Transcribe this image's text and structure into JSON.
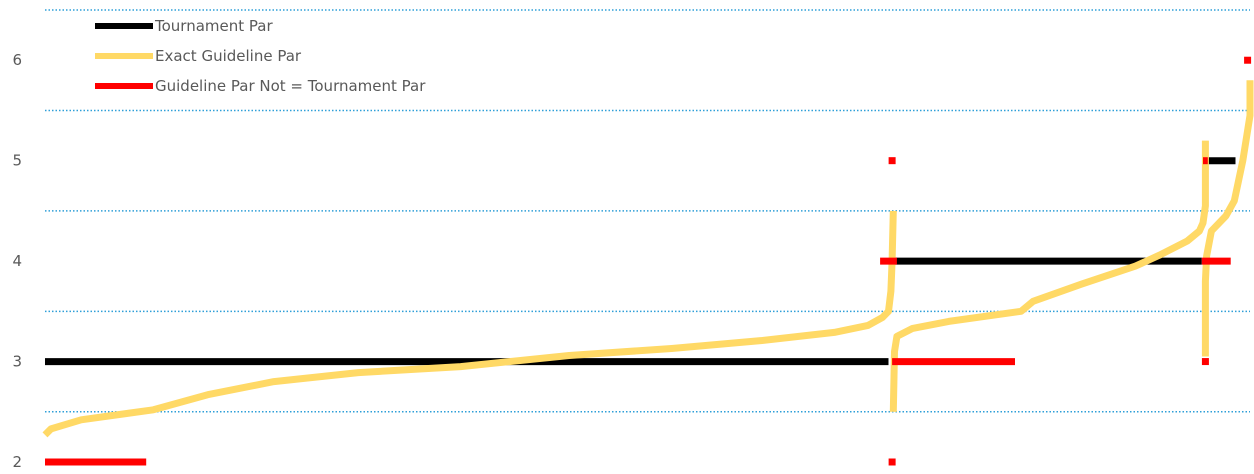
{
  "chart_data": {
    "type": "line",
    "title": "",
    "xlabel": "",
    "ylabel": "",
    "ylim": [
      2,
      6.5
    ],
    "xlim": [
      0,
      1000
    ],
    "yticks": [
      2,
      3,
      4,
      5,
      6
    ],
    "ytick_labels": [
      "2",
      "3",
      "4",
      "5",
      "6"
    ],
    "grid": {
      "y": true,
      "style": "dotted",
      "values": [
        2.5,
        3.5,
        4.5,
        5.5,
        6.5
      ]
    },
    "legend": {
      "placement": "top-left",
      "entries": [
        {
          "label": "Tournament Par",
          "color": "#000000"
        },
        {
          "label": "Exact Guideline Par",
          "color": "#FFD966"
        },
        {
          "label": "Guideline Par Not = Tournament Par",
          "color": "#FF0000"
        }
      ]
    },
    "series": [
      {
        "name": "Tournament Par",
        "color": "#000000",
        "segments": [
          [
            [
              0,
              3
            ],
            [
              700,
              3
            ]
          ],
          [
            [
              704,
              4
            ],
            [
              960,
              4
            ]
          ],
          [
            [
              962,
              5
            ],
            [
              988,
              5
            ]
          ]
        ]
      },
      {
        "name": "Exact Guideline Par",
        "color": "#FFD966",
        "segments": [
          [
            [
              0,
              2.27
            ],
            [
              5,
              2.33
            ],
            [
              30,
              2.42
            ],
            [
              90,
              2.52
            ],
            [
              135,
              2.67
            ],
            [
              190,
              2.8
            ],
            [
              260,
              2.89
            ],
            [
              345,
              2.95
            ],
            [
              435,
              3.06
            ],
            [
              520,
              3.13
            ],
            [
              595,
              3.21
            ],
            [
              655,
              3.29
            ],
            [
              683,
              3.36
            ],
            [
              695,
              3.44
            ],
            [
              700,
              3.5
            ],
            [
              702,
              3.7
            ],
            [
              703,
              4.0
            ],
            [
              704,
              4.5
            ]
          ],
          [
            [
              704,
              2.5
            ],
            [
              705,
              3.1
            ],
            [
              707,
              3.25
            ],
            [
              720,
              3.33
            ],
            [
              750,
              3.4
            ],
            [
              810,
              3.5
            ],
            [
              820,
              3.6
            ],
            [
              860,
              3.77
            ],
            [
              905,
              3.95
            ],
            [
              925,
              4.06
            ],
            [
              948,
              4.2
            ],
            [
              958,
              4.3
            ],
            [
              961,
              4.38
            ],
            [
              963,
              4.55
            ],
            [
              963,
              5.2
            ]
          ],
          [
            [
              963,
              3.05
            ],
            [
              963,
              3.8
            ],
            [
              964,
              4.05
            ],
            [
              968,
              4.3
            ],
            [
              980,
              4.45
            ],
            [
              987,
              4.6
            ],
            [
              994,
              5.0
            ],
            [
              998,
              5.3
            ],
            [
              1000,
              5.45
            ],
            [
              1000,
              5.8
            ]
          ]
        ]
      },
      {
        "name": "Guideline Par Not = Tournament Par",
        "color": "#FF0000",
        "segments": [
          [
            [
              0,
              2
            ],
            [
              84,
              2
            ]
          ],
          [
            [
              703,
              3
            ],
            [
              805,
              3
            ]
          ],
          [
            [
              693,
              4
            ],
            [
              707,
              4
            ]
          ],
          [
            [
              960,
              4
            ],
            [
              984,
              4
            ]
          ],
          [
            [
              961,
              5
            ],
            [
              965,
              5
            ]
          ]
        ],
        "points": [
          [
            703,
            5
          ],
          [
            703,
            2
          ],
          [
            963,
            3
          ],
          [
            998,
            6
          ]
        ]
      }
    ]
  }
}
